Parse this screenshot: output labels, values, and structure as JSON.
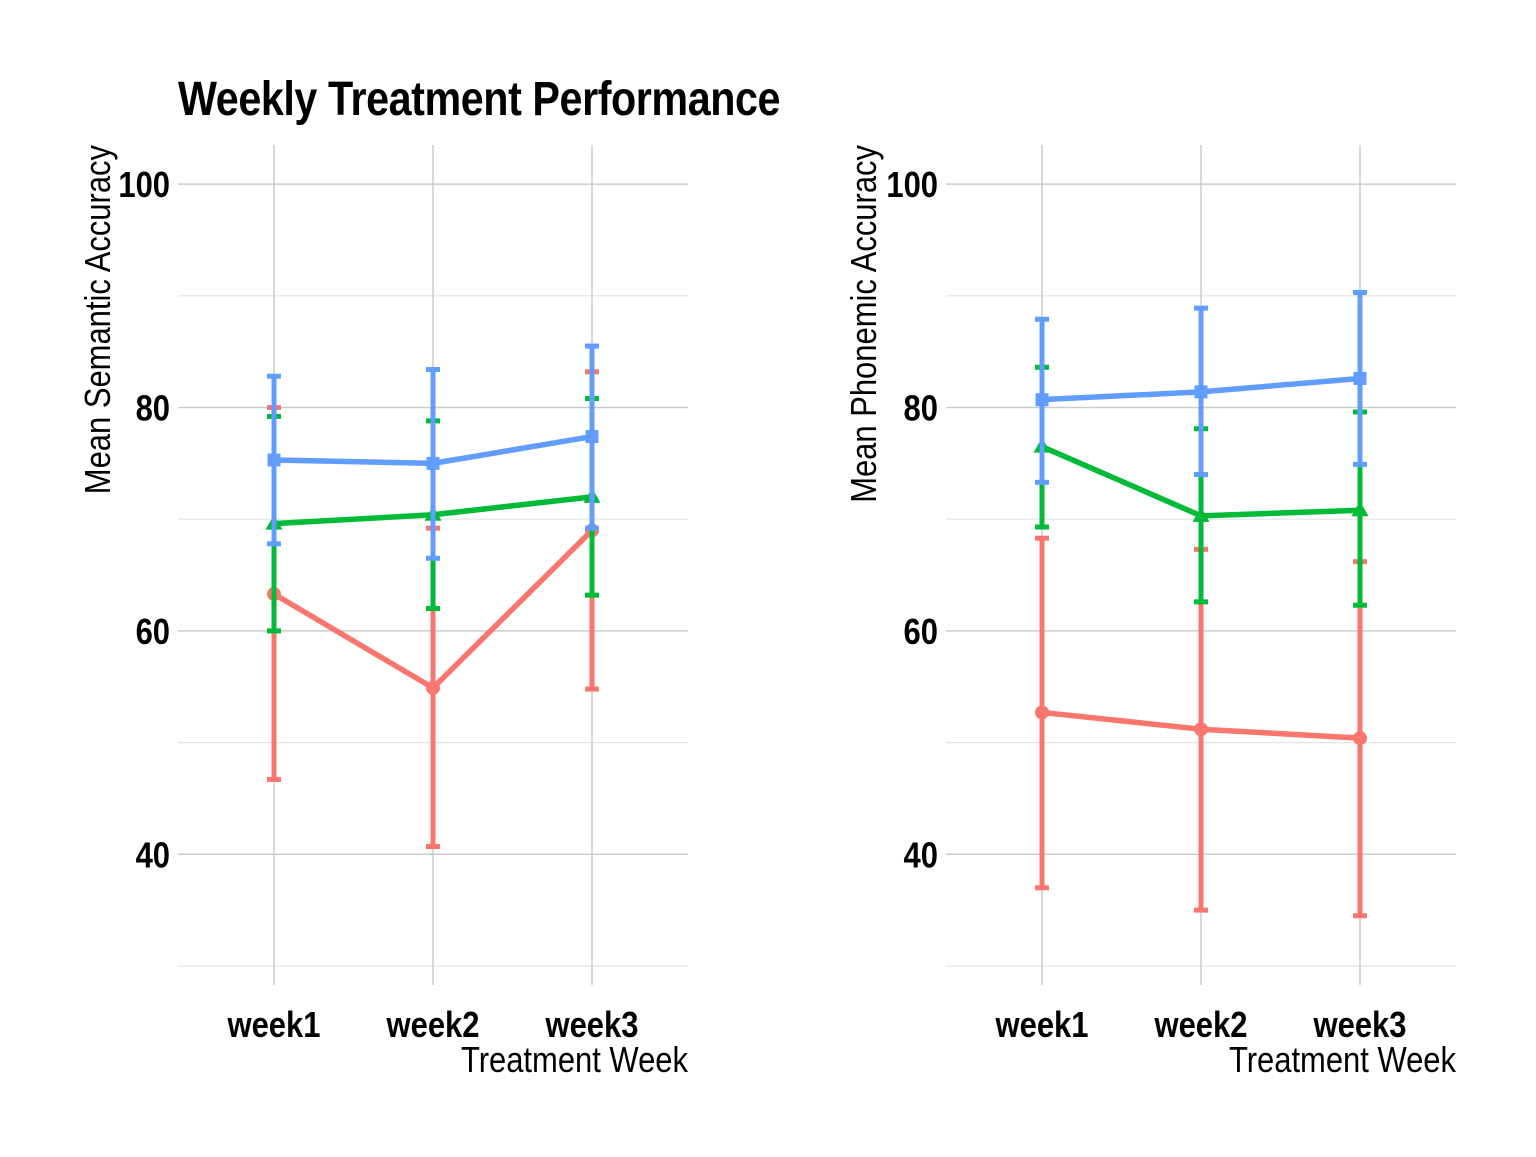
{
  "figure": {
    "title": "Weekly Treatment Performance"
  },
  "chart_data": [
    {
      "type": "line",
      "title": "Weekly Treatment Performance",
      "xlabel": "Treatment Week",
      "ylabel": "Mean Semantic Accuracy",
      "categories": [
        "week1",
        "week2",
        "week3"
      ],
      "ylim": [
        28.3,
        103.5
      ],
      "yticks": [
        40,
        60,
        80,
        100
      ],
      "grid": true,
      "series": [
        {
          "color": "#F8766D",
          "marker": "circle",
          "values": [
            63.3,
            54.9,
            69.0
          ],
          "error_low": [
            46.7,
            40.7,
            54.8
          ],
          "error_high": [
            80.0,
            69.2,
            83.2
          ]
        },
        {
          "color": "#00BA38",
          "marker": "triangle",
          "values": [
            69.6,
            70.4,
            72.0
          ],
          "error_low": [
            60.0,
            62.0,
            63.2
          ],
          "error_high": [
            79.2,
            78.8,
            80.8
          ]
        },
        {
          "color": "#619CFF",
          "marker": "square",
          "values": [
            75.3,
            75.0,
            77.4
          ],
          "error_low": [
            67.8,
            66.5,
            69.2
          ],
          "error_high": [
            82.8,
            83.4,
            85.5
          ]
        }
      ]
    },
    {
      "type": "line",
      "xlabel": "Treatment Week",
      "ylabel": "Mean Phonemic Accuracy",
      "categories": [
        "week1",
        "week2",
        "week3"
      ],
      "ylim": [
        28.3,
        103.5
      ],
      "yticks": [
        40,
        60,
        80,
        100
      ],
      "grid": true,
      "series": [
        {
          "color": "#F8766D",
          "marker": "circle",
          "values": [
            52.7,
            51.2,
            50.4
          ],
          "error_low": [
            37.0,
            35.0,
            34.5
          ],
          "error_high": [
            68.3,
            67.3,
            66.2
          ]
        },
        {
          "color": "#00BA38",
          "marker": "triangle",
          "values": [
            76.5,
            70.3,
            70.8
          ],
          "error_low": [
            69.3,
            62.6,
            62.3
          ],
          "error_high": [
            83.6,
            78.1,
            79.6
          ]
        },
        {
          "color": "#619CFF",
          "marker": "square",
          "values": [
            80.7,
            81.4,
            82.6
          ],
          "error_low": [
            73.3,
            74.0,
            74.9
          ],
          "error_high": [
            87.9,
            88.9,
            90.3
          ]
        }
      ]
    }
  ]
}
